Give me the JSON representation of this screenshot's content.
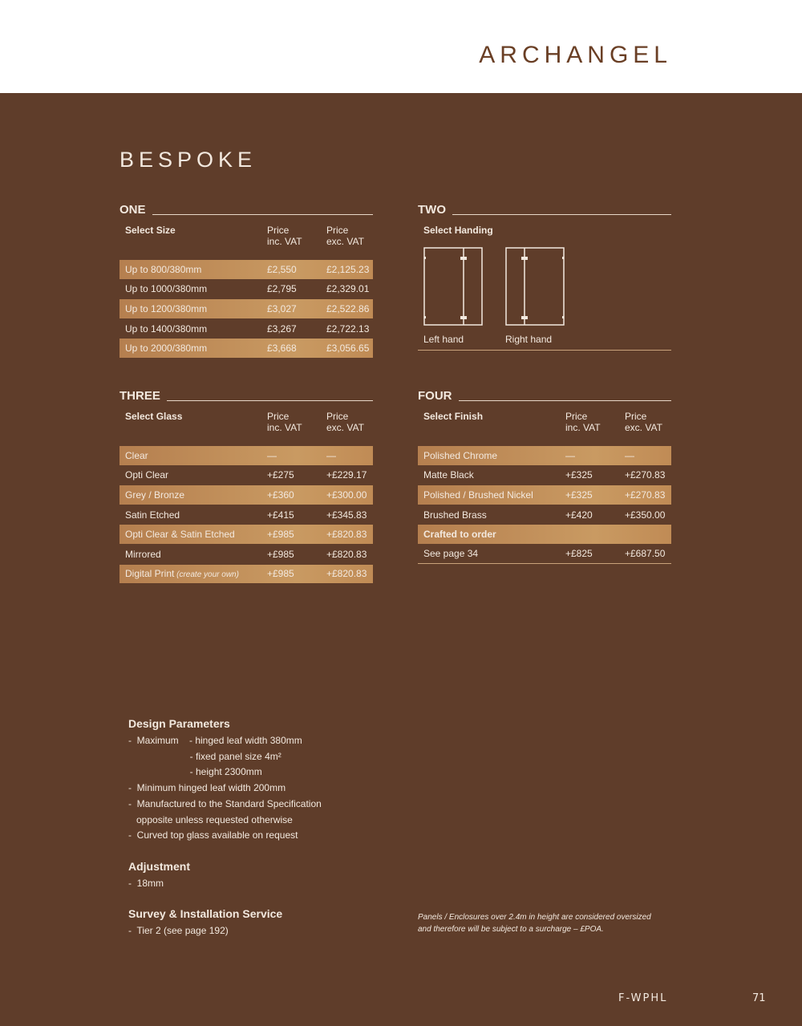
{
  "brand": "ARCHANGEL",
  "title": "BESPOKE",
  "one": {
    "heading": "ONE",
    "col1": "Select Size",
    "col2a": "Price",
    "col2b": "inc. VAT",
    "col3a": "Price",
    "col3b": "exc. VAT",
    "rows": [
      [
        "Up to 800/380mm",
        "£2,550",
        "£2,125.23"
      ],
      [
        "Up to 1000/380mm",
        "£2,795",
        "£2,329.01"
      ],
      [
        "Up to 1200/380mm",
        "£3,027",
        "£2,522.86"
      ],
      [
        "Up to 1400/380mm",
        "£3,267",
        "£2,722.13"
      ],
      [
        "Up to 2000/380mm",
        "£3,668",
        "£3,056.65"
      ]
    ]
  },
  "two": {
    "heading": "TWO",
    "label": "Select Handing",
    "left": "Left hand",
    "right": "Right hand"
  },
  "three": {
    "heading": "THREE",
    "col1": "Select Glass",
    "col2a": "Price",
    "col2b": "inc. VAT",
    "col3a": "Price",
    "col3b": "exc. VAT",
    "rows": [
      [
        "Clear",
        "—",
        "—"
      ],
      [
        "Opti Clear",
        "+£275",
        "+£229.17"
      ],
      [
        "Grey / Bronze",
        "+£360",
        "+£300.00"
      ],
      [
        "Satin Etched",
        "+£415",
        "+£345.83"
      ],
      [
        "Opti Clear & Satin Etched",
        "+£985",
        "+£820.83"
      ],
      [
        "Mirrored",
        "+£985",
        "+£820.83"
      ],
      [
        "Digital Print",
        "+£985",
        "+£820.83"
      ]
    ],
    "digital_note": "(create your own)"
  },
  "four": {
    "heading": "FOUR",
    "col1": "Select Finish",
    "col2a": "Price",
    "col2b": "inc. VAT",
    "col3a": "Price",
    "col3b": "exc. VAT",
    "rows": [
      [
        "Polished Chrome",
        "—",
        "—"
      ],
      [
        "Matte Black",
        "+£325",
        "+£270.83"
      ],
      [
        "Polished / Brushed Nickel",
        "+£325",
        "+£270.83"
      ],
      [
        "Brushed Brass",
        "+£420",
        "+£350.00"
      ],
      [
        "Crafted to order",
        "",
        ""
      ],
      [
        "See page 34",
        "+£825",
        "+£687.50"
      ]
    ]
  },
  "design": {
    "heading": "Design Parameters",
    "lines": [
      "-  Maximum    - hinged leaf width 380mm",
      "                       - fixed panel size 4m²",
      "                       - height 2300mm",
      "-  Minimum hinged leaf width 200mm",
      "-  Manufactured to the Standard Specification",
      "   opposite unless requested otherwise",
      "-  Curved top glass available on request"
    ]
  },
  "adjustment": {
    "heading": "Adjustment",
    "lines": [
      "-  18mm"
    ]
  },
  "survey": {
    "heading": "Survey & Installation Service",
    "lines": [
      "-  Tier 2 (see page 192)"
    ]
  },
  "note": [
    "Panels / Enclosures over 2.4m in height are considered oversized",
    "and therefore will be subject to a surcharge – £POA."
  ],
  "code": "F-WPHL",
  "page": "71"
}
